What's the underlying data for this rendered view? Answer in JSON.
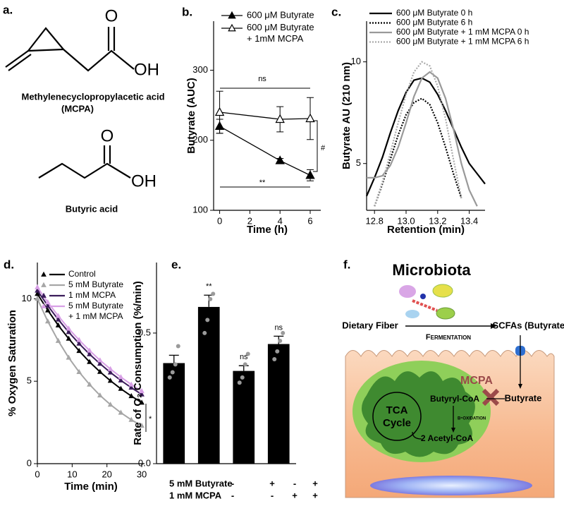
{
  "panels": {
    "a": {
      "label": "a.",
      "mcpa": {
        "atoms": [
          "O",
          "OH"
        ],
        "name": "Methylenecyclopropylacetic acid",
        "abbreviation": "(MCPA)"
      },
      "butyric": {
        "atoms": [
          "O",
          "OH"
        ],
        "name": "Butyric acid"
      }
    },
    "f": {
      "label": "f.",
      "title": "Microbiota",
      "source": "Dietary Fiber",
      "process": "Fermentation",
      "product": "SCFAs (Butyrate)",
      "inhibitor": "MCPA",
      "uptake": "Butyrate",
      "intermediate": "Butyryl-CoA",
      "pathway": "β-oxidation",
      "output": "2 Acetyl-CoA",
      "cycle": [
        "TCA",
        "Cycle"
      ]
    }
  },
  "chart_data": [
    {
      "type": "line",
      "panel_label": "b.",
      "x_label": "Time (h)",
      "y_label": "Butyrate (AUC)",
      "x": [
        0,
        4,
        6
      ],
      "xlim": [
        -0.4,
        6.7
      ],
      "xticks": [
        0,
        2,
        4,
        6
      ],
      "ylim": [
        100,
        370
      ],
      "yticks": [
        100,
        200,
        300
      ],
      "series": [
        {
          "name": "600 μM Butyrate",
          "color": "#000000",
          "marker": "triangle",
          "filled": true,
          "values": [
            220,
            171,
            150
          ],
          "errors": [
            10,
            3,
            8
          ]
        },
        {
          "name": "600 μM Butyrate + 1mM MCPA",
          "color": "#000000",
          "marker": "triangle",
          "filled": false,
          "values": [
            240,
            230,
            231
          ],
          "errors": [
            30,
            18,
            30
          ]
        }
      ],
      "annotations": [
        "ns",
        "**",
        "#"
      ]
    },
    {
      "type": "line",
      "panel_label": "c.",
      "x_label": "Retention (min)",
      "y_label": "Butyrate AU (210 nm)",
      "x": [
        12.75,
        12.8,
        12.85,
        12.9,
        12.95,
        13.0,
        13.05,
        13.1,
        13.15,
        13.2,
        13.25,
        13.3,
        13.35,
        13.4,
        13.45,
        13.5
      ],
      "xlim": [
        12.75,
        13.5
      ],
      "xticks": [
        12.8,
        {
          "value": 13,
          "label": "13.0"
        },
        13.2,
        13.4
      ],
      "ylim": [
        2.7,
        12
      ],
      "yticks": [
        5,
        10
      ],
      "series": [
        {
          "name": "600 μM Butyrate 0 h",
          "color": "#000000",
          "dash": false,
          "values": [
            3.4,
            4.3,
            5.3,
            6.5,
            7.6,
            8.5,
            9.1,
            9.2,
            9.0,
            8.4,
            7.6,
            6.7,
            5.8,
            5.0,
            4.5,
            4.0
          ]
        },
        {
          "name": "600 μM Butyrate 6 h",
          "color": "#000000",
          "dash": true,
          "values": [
            null,
            2.9,
            4.0,
            5.2,
            6.4,
            7.4,
            8.0,
            8.2,
            7.9,
            7.0,
            5.8,
            4.5,
            3.3,
            null,
            null,
            null
          ]
        },
        {
          "name": "600 μM Butyrate + 1 mM MCPA 0 h",
          "color": "#999999",
          "dash": false,
          "values": [
            4.3,
            4.3,
            4.4,
            4.9,
            5.8,
            7.0,
            8.3,
            9.2,
            9.5,
            9.2,
            8.2,
            6.7,
            5.0,
            3.7,
            2.9,
            null
          ]
        },
        {
          "name": "600 μM Butyrate + 1 mM MCPA 6 h",
          "color": "#aaaaaa",
          "dash": true,
          "values": [
            null,
            2.9,
            4.1,
            5.5,
            7.0,
            8.4,
            9.5,
            10.0,
            9.8,
            8.8,
            7.2,
            5.2,
            3.3,
            null,
            null,
            null
          ]
        }
      ]
    },
    {
      "type": "line",
      "panel_label": "d.",
      "x_label": "Time (min)",
      "y_label": "% Oxygen Saturation",
      "x": [
        0,
        3,
        6,
        9,
        12,
        15,
        18,
        21,
        24,
        27,
        30
      ],
      "xlim": [
        0,
        30.8
      ],
      "xticks": [
        0,
        10,
        20,
        30
      ],
      "ylim": [
        0,
        12.2
      ],
      "yticks": [
        0,
        5,
        10
      ],
      "series": [
        {
          "name": "Control",
          "color": "#000000",
          "marker": "triangle",
          "filled": true,
          "values": [
            10.3,
            9.3,
            8.39,
            7.58,
            6.84,
            6.17,
            5.57,
            5.03,
            4.54,
            4.1,
            3.7
          ]
        },
        {
          "name": "5 mM Butyrate",
          "color": "#a6a6a6",
          "marker": "triangle",
          "filled": true,
          "values": [
            10.0,
            8.63,
            7.45,
            6.43,
            5.56,
            4.8,
            4.14,
            3.58,
            3.09,
            2.66,
            2.3
          ]
        },
        {
          "name": "1 mM MCPA",
          "color": "#3b1c5a",
          "marker": "triangle",
          "filled": true,
          "values": [
            10.5,
            9.58,
            8.74,
            7.98,
            7.28,
            6.64,
            6.06,
            5.53,
            5.05,
            4.61,
            4.2
          ]
        },
        {
          "name": "5 mM Butyrate + 1 mM MCPA",
          "color": "#d8a0e6",
          "marker": "triangle",
          "filled": true,
          "values": [
            10.7,
            9.79,
            8.96,
            8.19,
            7.5,
            6.86,
            6.27,
            5.74,
            5.25,
            4.8,
            4.4
          ]
        }
      ],
      "annotations": [
        "*"
      ]
    },
    {
      "type": "bar",
      "panel_label": "e.",
      "y_label": "Rate of O₂ Consumption (%/min)",
      "ylim": [
        0,
        0.77
      ],
      "yticks": [
        {
          "value": 0,
          "label": "0.0"
        },
        0.5
      ],
      "color": "#000000",
      "values": [
        0.385,
        0.6,
        0.355,
        0.458
      ],
      "errors": [
        0.03,
        0.045,
        0.02,
        0.03
      ],
      "points": [
        [
          0.33,
          0.35,
          0.38,
          0.45
        ],
        [
          0.5,
          0.55,
          0.63,
          0.65
        ],
        [
          0.31,
          0.33,
          0.38,
          0.42
        ],
        [
          0.4,
          0.43,
          0.47,
          0.5
        ]
      ],
      "annotations": [
        null,
        "**",
        "ns",
        "ns"
      ],
      "treatments": [
        {
          "label": "5 mM Butyrate",
          "signs": [
            "-",
            "+",
            "-",
            "+"
          ]
        },
        {
          "label": "1 mM MCPA",
          "signs": [
            "-",
            "-",
            "+",
            "+"
          ]
        }
      ]
    }
  ]
}
